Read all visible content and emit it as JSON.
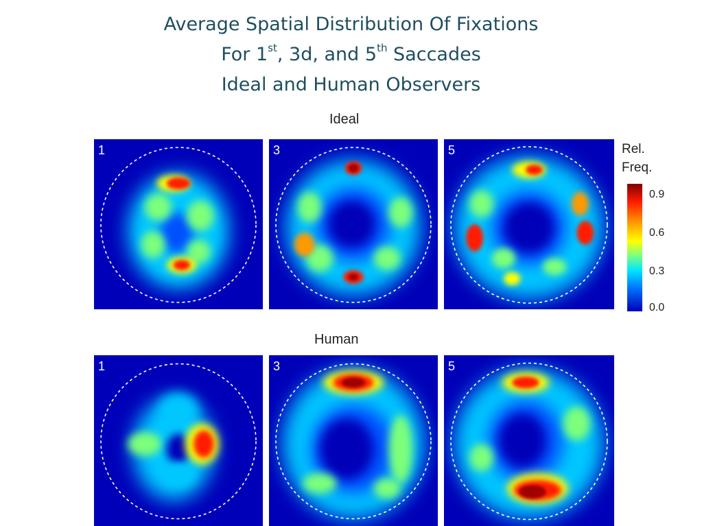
{
  "title": {
    "line1": "Average Spatial Distribution Of Fixations",
    "line2_a": "For 1",
    "line2_sup1": "st",
    "line2_b": ", 3d, and 5",
    "line2_sup2": "th",
    "line2_c": " Saccades",
    "line3": "Ideal and Human Observers"
  },
  "chart_data": {
    "type": "heatmap",
    "rows": [
      {
        "name": "Ideal",
        "panels": [
          {
            "label": "1"
          },
          {
            "label": "3"
          },
          {
            "label": "5"
          }
        ]
      },
      {
        "name": "Human",
        "panels": [
          {
            "label": "1"
          },
          {
            "label": "3"
          },
          {
            "label": "5"
          }
        ]
      }
    ],
    "colorbar": {
      "title_line1": "Rel.",
      "title_line2": "Freq.",
      "ticks": [
        "0.9",
        "0.6",
        "0.3",
        "0.0"
      ],
      "range": [
        0.0,
        0.9
      ],
      "colormap": "jet"
    }
  }
}
